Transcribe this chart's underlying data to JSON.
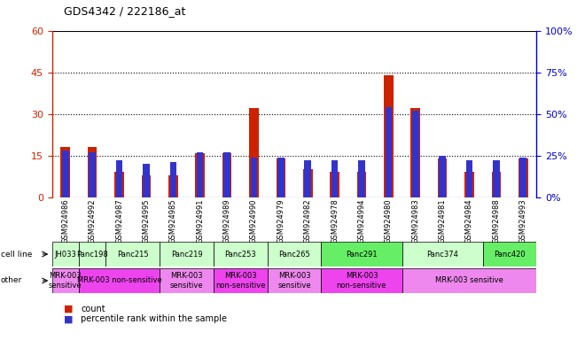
{
  "title": "GDS4342 / 222186_at",
  "samples": [
    "GSM924986",
    "GSM924992",
    "GSM924987",
    "GSM924995",
    "GSM924985",
    "GSM924991",
    "GSM924989",
    "GSM924990",
    "GSM924979",
    "GSM924982",
    "GSM924978",
    "GSM924994",
    "GSM924980",
    "GSM924983",
    "GSM924981",
    "GSM924984",
    "GSM924988",
    "GSM924993"
  ],
  "counts": [
    18,
    18,
    9,
    8,
    8,
    16,
    16,
    32,
    14,
    10,
    9,
    9,
    44,
    32,
    14,
    9,
    9,
    14
  ],
  "percentiles": [
    28,
    27,
    22,
    20,
    21,
    27,
    27,
    24,
    24,
    22,
    22,
    22,
    54,
    52,
    25,
    22,
    22,
    24
  ],
  "cell_lines": [
    {
      "name": "JH033",
      "start": 0,
      "end": 1,
      "color": "#ccffcc"
    },
    {
      "name": "Panc198",
      "start": 1,
      "end": 2,
      "color": "#ccffcc"
    },
    {
      "name": "Panc215",
      "start": 2,
      "end": 4,
      "color": "#ccffcc"
    },
    {
      "name": "Panc219",
      "start": 4,
      "end": 6,
      "color": "#ccffcc"
    },
    {
      "name": "Panc253",
      "start": 6,
      "end": 8,
      "color": "#ccffcc"
    },
    {
      "name": "Panc265",
      "start": 8,
      "end": 10,
      "color": "#ccffcc"
    },
    {
      "name": "Panc291",
      "start": 10,
      "end": 13,
      "color": "#66ee66"
    },
    {
      "name": "Panc374",
      "start": 13,
      "end": 16,
      "color": "#ccffcc"
    },
    {
      "name": "Panc420",
      "start": 16,
      "end": 18,
      "color": "#66ee66"
    }
  ],
  "other_rows": [
    {
      "label": "MRK-003\nsensitive",
      "start": 0,
      "end": 1,
      "color": "#ee88ee"
    },
    {
      "label": "MRK-003 non-sensitive",
      "start": 1,
      "end": 4,
      "color": "#ee44ee"
    },
    {
      "label": "MRK-003\nsensitive",
      "start": 4,
      "end": 6,
      "color": "#ee88ee"
    },
    {
      "label": "MRK-003\nnon-sensitive",
      "start": 6,
      "end": 8,
      "color": "#ee44ee"
    },
    {
      "label": "MRK-003\nsensitive",
      "start": 8,
      "end": 10,
      "color": "#ee88ee"
    },
    {
      "label": "MRK-003\nnon-sensitive",
      "start": 10,
      "end": 13,
      "color": "#ee44ee"
    },
    {
      "label": "MRK-003 sensitive",
      "start": 13,
      "end": 18,
      "color": "#ee88ee"
    }
  ],
  "ylim_left": [
    0,
    60
  ],
  "ylim_right": [
    0,
    100
  ],
  "yticks_left": [
    0,
    15,
    30,
    45,
    60
  ],
  "yticks_right": [
    0,
    25,
    50,
    75,
    100
  ],
  "bar_color_red": "#cc2200",
  "bar_color_blue": "#3333cc",
  "left_axis_color": "#cc2200",
  "right_axis_color": "#0000cc",
  "background_color": "#ffffff",
  "red_bar_width": 0.35,
  "blue_bar_width": 0.25
}
